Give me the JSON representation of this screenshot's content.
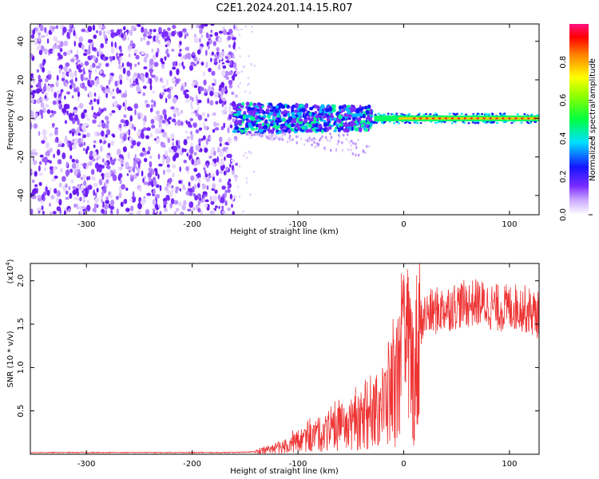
{
  "title": "C2E1.2024.201.14.15.R07",
  "chart_data": [
    {
      "type": "heatmap",
      "xlabel": "Height of straight line (km)",
      "ylabel": "Frequency (Hz)",
      "xlim": [
        -353,
        128
      ],
      "ylim": [
        -50,
        49
      ],
      "xticks": [
        -300,
        -200,
        -100,
        0,
        100
      ],
      "yticks": [
        -40,
        -20,
        0,
        20,
        40
      ],
      "colorbar": {
        "label": "Normalized spectral amplitude",
        "range": [
          0,
          1
        ],
        "ticks": [
          "0.0",
          "0.2",
          "0.4",
          "0.6",
          "0.8"
        ],
        "colormap": "rainbow (white-violet-blue-cyan-green-yellow-red-magenta)"
      },
      "description_regions": [
        {
          "x_range": [
            -353,
            -160
          ],
          "freq_range": [
            -50,
            49
          ],
          "level": "low (violet noise)"
        },
        {
          "x_range": [
            -160,
            -30
          ],
          "freq_range": [
            -10,
            10
          ],
          "level": "medium (blue/cyan)"
        },
        {
          "x_range": [
            -30,
            128
          ],
          "freq_range": [
            -3,
            3
          ],
          "level": "high (yellow-red line at 0 Hz)"
        }
      ],
      "grid": false
    },
    {
      "type": "line",
      "xlabel": "Height of straight line (km)",
      "ylabel": "SNR (10 * v/v)",
      "yscale_label": "(x10",
      "yscale_exp": "4",
      "yscale_close": ")",
      "xlim": [
        -353,
        128
      ],
      "ylim": [
        0,
        2.2
      ],
      "xticks": [
        -300,
        -200,
        -100,
        0,
        100
      ],
      "yticks": [
        0.5,
        1.0,
        1.5,
        2.0
      ],
      "series_color": "#ee3333",
      "series": [
        {
          "x": [
            -353,
            -300,
            -250,
            -200,
            -160,
            -140,
            -120,
            -100,
            -80,
            -60,
            -40,
            -20,
            -10,
            -5,
            0,
            5,
            10,
            15,
            20,
            30,
            50,
            70,
            90,
            110,
            128
          ],
          "values": [
            0.02,
            0.02,
            0.02,
            0.02,
            0.02,
            0.03,
            0.07,
            0.15,
            0.22,
            0.3,
            0.38,
            0.55,
            0.75,
            0.9,
            1.1,
            1.2,
            0.85,
            1.5,
            1.6,
            1.65,
            1.72,
            1.75,
            1.68,
            1.7,
            1.6
          ]
        }
      ],
      "grid": false
    }
  ]
}
